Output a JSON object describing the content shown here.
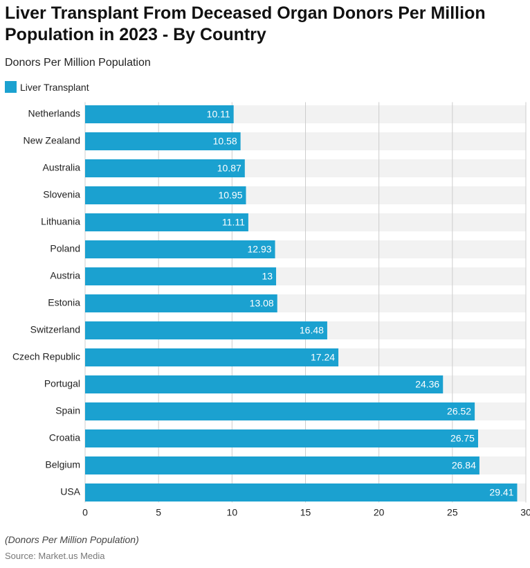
{
  "chart_data": {
    "type": "bar",
    "orientation": "horizontal",
    "title": "Liver Transplant From Deceased Organ Donors Per Million Population in 2023 - By Country",
    "subtitle": "Donors Per Million Population",
    "categories": [
      "Netherlands",
      "New Zealand",
      "Australia",
      "Slovenia",
      "Lithuania",
      "Poland",
      "Austria",
      "Estonia",
      "Switzerland",
      "Czech Republic",
      "Portugal",
      "Spain",
      "Croatia",
      "Belgium",
      "USA"
    ],
    "series": [
      {
        "name": "Liver Transplant",
        "color": "#1ba1d0",
        "values": [
          10.11,
          10.58,
          10.87,
          10.95,
          11.11,
          12.93,
          13,
          13.08,
          16.48,
          17.24,
          24.36,
          26.52,
          26.75,
          26.84,
          29.41
        ]
      }
    ],
    "xlim": [
      0,
      30
    ],
    "xticks": [
      0,
      5,
      10,
      15,
      20,
      25,
      30
    ],
    "grid": true,
    "note": "(Donors Per Million Population)",
    "source": "Source: Market.us Media"
  }
}
